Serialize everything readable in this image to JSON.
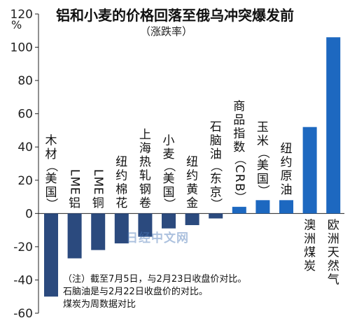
{
  "chart_data": {
    "type": "bar",
    "title": "铝和小麦的价格回落至俄乌冲突爆发前",
    "subtitle": "（涨跌率）",
    "ylabel": "%",
    "ylim": [
      -60,
      120
    ],
    "yticks": [
      -60,
      -40,
      -20,
      0,
      20,
      40,
      60,
      80,
      100,
      120
    ],
    "grid": false,
    "categories": [
      "木材（美国）",
      "LME铝",
      "LME铜",
      "纽约棉花",
      "上海热轧钢卷",
      "小麦（美国）",
      "纽约黄金",
      "石脑油（东京）",
      "商品指数（CRB）",
      "玉米（美国）",
      "纽约原油",
      "澳洲煤炭",
      "欧洲天然气"
    ],
    "values": [
      -50,
      -27,
      -22,
      -18,
      -14,
      -9,
      -7,
      -3,
      4,
      8,
      8,
      52,
      106
    ],
    "bar_color_negative": "#2b4a7e",
    "bar_color_positive": "#1d68c0",
    "notes": [
      "（注）截至7月5日，与2月23日收盘价对比。",
      "石脑油是与2月22日收盘价的对比。",
      "煤炭为周数据对比"
    ],
    "watermark": "日经中文网"
  }
}
